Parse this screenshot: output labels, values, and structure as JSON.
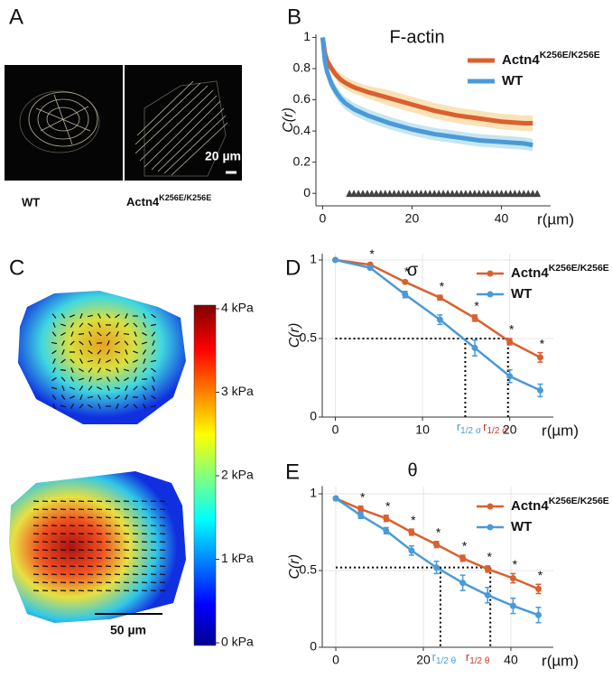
{
  "panel_labels": [
    "A",
    "B",
    "C",
    "D",
    "E"
  ],
  "panel_a": {
    "labels": [
      "WT",
      "Actn4K256E/K256E"
    ],
    "scale_bar": "20 µm"
  },
  "panel_c": {
    "scale_bar": "50 µm",
    "colorbar": {
      "lim": [
        0,
        4
      ],
      "ticks": [
        {
          "value": 0,
          "label": "0 kPa"
        },
        {
          "value": 1,
          "label": "1 kPa"
        },
        {
          "value": 2,
          "label": "2 kPa"
        },
        {
          "value": 3,
          "label": "3 kPa"
        },
        {
          "value": 4,
          "label": "4 kPa"
        }
      ]
    }
  },
  "chart_data": [
    {
      "type": "line",
      "title": "F-actin",
      "ylabel": "C(r)",
      "xlabel": "r(µm)",
      "band": true,
      "grid": false,
      "x": [
        0,
        0.5,
        1,
        2,
        3,
        4,
        5,
        7,
        10,
        15,
        20,
        25,
        30,
        35,
        40,
        45,
        47
      ],
      "series": [
        {
          "name": "Actn4K256E/K256E",
          "color": "#d9602f",
          "band_color": "#f7cf86",
          "values": [
            1,
            0.9,
            0.85,
            0.8,
            0.76,
            0.73,
            0.71,
            0.68,
            0.65,
            0.61,
            0.57,
            0.53,
            0.5,
            0.48,
            0.46,
            0.45,
            0.45
          ],
          "errors": [
            0,
            0.02,
            0.03,
            0.03,
            0.03,
            0.04,
            0.04,
            0.04,
            0.04,
            0.05,
            0.05,
            0.05,
            0.05,
            0.05,
            0.05,
            0.05,
            0.05
          ]
        },
        {
          "name": "WT",
          "color": "#4a9ad8",
          "band_color": "#9fd6e8",
          "values": [
            1,
            0.85,
            0.78,
            0.7,
            0.65,
            0.61,
            0.58,
            0.54,
            0.5,
            0.45,
            0.41,
            0.38,
            0.36,
            0.34,
            0.33,
            0.32,
            0.31
          ],
          "errors": [
            0,
            0.03,
            0.03,
            0.04,
            0.04,
            0.04,
            0.04,
            0.04,
            0.04,
            0.04,
            0.04,
            0.04,
            0.04,
            0.04,
            0.04,
            0.04,
            0.04
          ]
        }
      ],
      "significance_x": [
        6,
        7,
        8,
        9,
        10,
        11,
        12,
        13,
        14,
        15,
        16,
        17,
        18,
        19,
        20,
        21,
        22,
        23,
        24,
        25,
        26,
        27,
        28,
        29,
        30,
        31,
        32,
        33,
        34,
        35,
        36,
        37,
        38,
        39,
        40,
        41,
        42,
        43,
        44,
        45,
        46,
        47,
        48
      ],
      "xlim": [
        -1.5,
        51
      ],
      "ylim": [
        -0.08,
        1.02
      ],
      "xticks": [
        0,
        20,
        40
      ],
      "yticks": [
        0,
        0.2,
        0.4,
        0.6,
        0.8,
        1
      ]
    },
    {
      "type": "line",
      "title": "σ",
      "ylabel": "C(r)",
      "xlabel": "r(µm)",
      "markers": true,
      "grid": true,
      "x": [
        0,
        4,
        8,
        12,
        16,
        20,
        23.5
      ],
      "series": [
        {
          "name": "Actn4K256E/K256E",
          "color": "#d9602f",
          "values": [
            1,
            0.97,
            0.86,
            0.76,
            0.63,
            0.48,
            0.38
          ],
          "errors": [
            0,
            0.01,
            0.01,
            0.015,
            0.02,
            0.02,
            0.03
          ],
          "stars": [
            null,
            "*",
            "*",
            "*",
            "*",
            "*",
            "*"
          ]
        },
        {
          "name": "WT",
          "color": "#4a9ad8",
          "values": [
            1,
            0.95,
            0.78,
            0.62,
            0.44,
            0.26,
            0.17
          ],
          "errors": [
            0,
            0.01,
            0.02,
            0.03,
            0.05,
            0.04,
            0.04
          ]
        }
      ],
      "hline": 0.5,
      "vlines": [
        {
          "x": 14.9,
          "color": "#4a9ad8",
          "text": "r",
          "sub": "1/2 σ"
        },
        {
          "x": 19.8,
          "color": "#c0392b",
          "text": "r",
          "sub": "1/2 σ"
        }
      ],
      "xlim": [
        -1.5,
        25
      ],
      "ylim": [
        0,
        1.04
      ],
      "xticks": [
        0,
        10,
        20
      ],
      "yticks": [
        0,
        0.5,
        1
      ]
    },
    {
      "type": "line",
      "title": "θ",
      "ylabel": "C(r)",
      "xlabel": "r(µm)",
      "markers": true,
      "grid": true,
      "x": [
        0,
        5.7,
        11.5,
        17.3,
        23,
        29,
        34.7,
        40.5,
        46.3
      ],
      "series": [
        {
          "name": "Actn4K256E/K256E",
          "color": "#d9602f",
          "values": [
            0.97,
            0.9,
            0.84,
            0.75,
            0.67,
            0.58,
            0.51,
            0.45,
            0.38
          ],
          "errors": [
            0.01,
            0.02,
            0.02,
            0.02,
            0.02,
            0.02,
            0.02,
            0.03,
            0.03
          ],
          "stars": [
            null,
            "*",
            "*",
            "*",
            "*",
            "*",
            "*",
            "*",
            "*"
          ]
        },
        {
          "name": "WT",
          "color": "#4a9ad8",
          "values": [
            0.97,
            0.86,
            0.76,
            0.63,
            0.52,
            0.42,
            0.34,
            0.27,
            0.21
          ],
          "errors": [
            0.01,
            0.02,
            0.02,
            0.03,
            0.04,
            0.05,
            0.05,
            0.05,
            0.05
          ]
        }
      ],
      "hline": 0.52,
      "vlines": [
        {
          "x": 23.9,
          "color": "#4a9ad8",
          "text": "r",
          "sub": "1/2 θ"
        },
        {
          "x": 35.3,
          "color": "#c0392b",
          "text": "r",
          "sub": "1/2 θ"
        }
      ],
      "xlim": [
        -3.1,
        49.7
      ],
      "ylim": [
        0,
        1.05
      ],
      "xticks": [
        0,
        20,
        40
      ],
      "yticks": [
        0,
        0.5,
        1
      ]
    }
  ]
}
